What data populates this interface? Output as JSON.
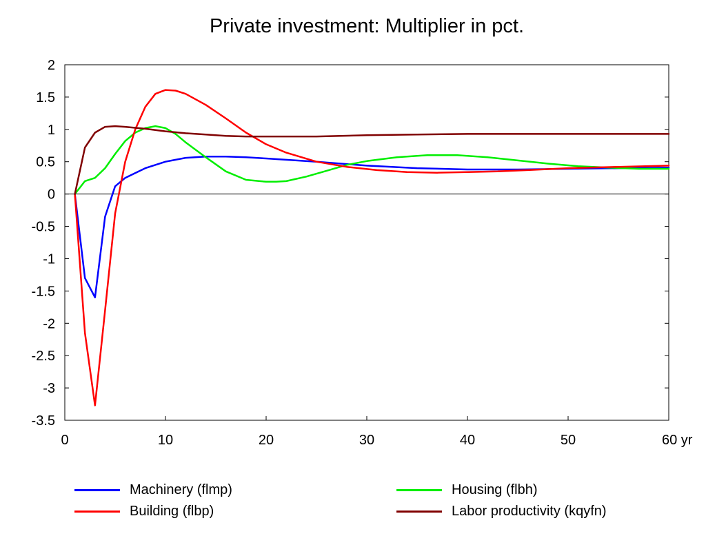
{
  "chart_data": {
    "type": "line",
    "title": "Private investment: Multiplier in pct.",
    "xlabel": "",
    "ylabel": "",
    "x_unit_suffix": "yr",
    "xlim": [
      0,
      60
    ],
    "ylim": [
      -3.5,
      2
    ],
    "xticks": [
      0,
      10,
      20,
      30,
      40,
      50,
      60
    ],
    "yticks": [
      2,
      1.5,
      1,
      0.5,
      0,
      -0.5,
      -1,
      -1.5,
      -2,
      -2.5,
      -3,
      -3.5
    ],
    "xtick_labels": [
      "0",
      "10",
      "20",
      "30",
      "40",
      "50",
      "60 yr"
    ],
    "ytick_labels": [
      "2",
      "1.5",
      "1",
      "0.5",
      "0",
      "-0.5",
      "-1",
      "-1.5",
      "-2",
      "-2.5",
      "-3",
      "-3.5"
    ],
    "grid": false,
    "zero_line": true,
    "legend_position": "bottom",
    "series": [
      {
        "name": "Machinery (flmp)",
        "color": "#0000ff",
        "x": [
          1,
          2,
          3,
          4,
          5,
          6,
          8,
          10,
          12,
          14,
          16,
          18,
          20,
          25,
          30,
          35,
          40,
          45,
          50,
          55,
          60
        ],
        "y": [
          0,
          -1.3,
          -1.6,
          -0.35,
          0.12,
          0.25,
          0.4,
          0.5,
          0.56,
          0.58,
          0.58,
          0.57,
          0.55,
          0.5,
          0.44,
          0.4,
          0.38,
          0.38,
          0.39,
          0.4,
          0.41
        ]
      },
      {
        "name": "Housing (flbh)",
        "color": "#00ee00",
        "x": [
          1,
          2,
          3,
          4,
          5,
          6,
          7,
          8,
          9,
          10,
          11,
          12,
          14,
          16,
          18,
          20,
          21,
          22,
          24,
          26,
          28,
          30,
          33,
          36,
          39,
          42,
          45,
          48,
          51,
          54,
          57,
          60
        ],
        "y": [
          0,
          0.2,
          0.25,
          0.4,
          0.62,
          0.82,
          0.95,
          1.02,
          1.05,
          1.02,
          0.93,
          0.8,
          0.57,
          0.35,
          0.22,
          0.19,
          0.19,
          0.2,
          0.27,
          0.36,
          0.45,
          0.51,
          0.57,
          0.6,
          0.6,
          0.57,
          0.52,
          0.47,
          0.43,
          0.41,
          0.39,
          0.39
        ]
      },
      {
        "name": "Building (flbp)",
        "color": "#ff0000",
        "x": [
          1,
          2,
          3,
          4,
          5,
          6,
          7,
          8,
          9,
          10,
          11,
          12,
          14,
          16,
          18,
          20,
          22,
          25,
          28,
          31,
          34,
          37,
          40,
          43,
          46,
          50,
          55,
          60
        ],
        "y": [
          0,
          -2.15,
          -3.27,
          -1.8,
          -0.3,
          0.5,
          1.0,
          1.35,
          1.55,
          1.61,
          1.6,
          1.55,
          1.38,
          1.17,
          0.95,
          0.77,
          0.64,
          0.5,
          0.42,
          0.37,
          0.34,
          0.33,
          0.34,
          0.35,
          0.37,
          0.4,
          0.42,
          0.44
        ]
      },
      {
        "name": "Labor productivity (kqyfn)",
        "color": "#800000",
        "x": [
          1,
          2,
          3,
          4,
          5,
          6,
          8,
          10,
          12,
          14,
          16,
          18,
          20,
          25,
          30,
          35,
          40,
          45,
          50,
          55,
          60
        ],
        "y": [
          0,
          0.72,
          0.95,
          1.04,
          1.05,
          1.04,
          1.01,
          0.97,
          0.94,
          0.92,
          0.9,
          0.89,
          0.89,
          0.89,
          0.91,
          0.92,
          0.93,
          0.93,
          0.93,
          0.93,
          0.93
        ]
      }
    ]
  },
  "legend_order": [
    0,
    1,
    2,
    3
  ]
}
